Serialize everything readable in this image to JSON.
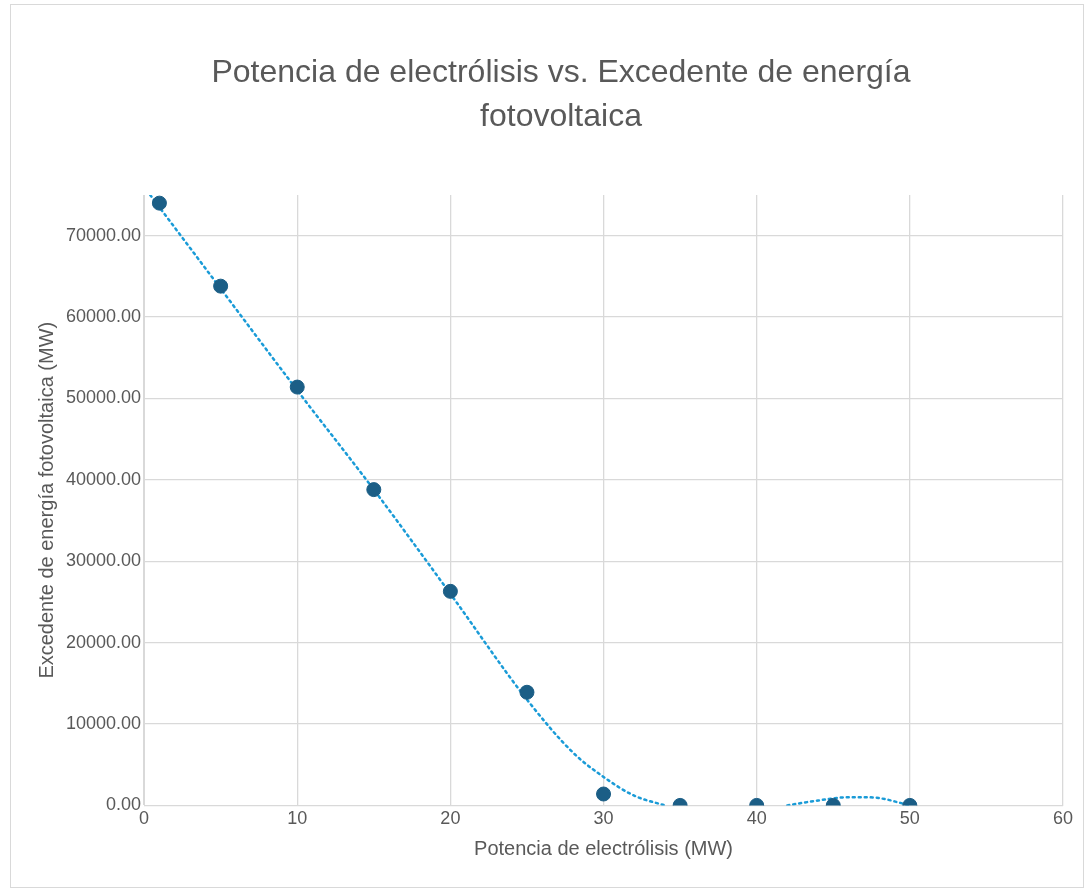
{
  "chart_data": {
    "type": "scatter",
    "title": "Potencia de electrólisis vs. Excedente de energía fotovoltaica",
    "xlabel": "Potencia de electrólisis (MW)",
    "ylabel": "Excedente de energía fotovoltaica (MW)",
    "xlim": [
      0,
      60
    ],
    "xticks": [
      0,
      10,
      20,
      30,
      40,
      50,
      60
    ],
    "ylim": [
      0,
      75000
    ],
    "yticks": [
      {
        "value": 0,
        "label": "0.00"
      },
      {
        "value": 10000,
        "label": "10000.00"
      },
      {
        "value": 20000,
        "label": "20000.00"
      },
      {
        "value": 30000,
        "label": "30000.00"
      },
      {
        "value": 40000,
        "label": "40000.00"
      },
      {
        "value": 50000,
        "label": "50000.00"
      },
      {
        "value": 60000,
        "label": "60000.00"
      },
      {
        "value": 70000,
        "label": "70000.00"
      }
    ],
    "grid": true,
    "legend": false,
    "series": [
      {
        "color": "#1b5e86",
        "marker": "circle",
        "x": [
          1,
          5,
          10,
          15,
          20,
          25,
          30,
          35,
          40,
          45,
          50
        ],
        "values": [
          74000,
          63800,
          51400,
          38800,
          26300,
          13900,
          1400,
          0,
          0,
          0,
          0
        ]
      },
      {
        "type": "line",
        "color": "#1a9bd7",
        "marker": "none",
        "line_style": "dotted",
        "x": [
          0.4,
          5,
          10,
          15,
          20,
          25,
          28,
          30,
          32,
          34,
          35,
          42,
          44,
          46,
          47,
          48,
          50
        ],
        "values": [
          75000,
          63500,
          51000,
          38800,
          26000,
          13000,
          6500,
          3500,
          1200,
          0,
          null,
          0,
          600,
          1000,
          1000,
          900,
          0
        ]
      }
    ]
  }
}
